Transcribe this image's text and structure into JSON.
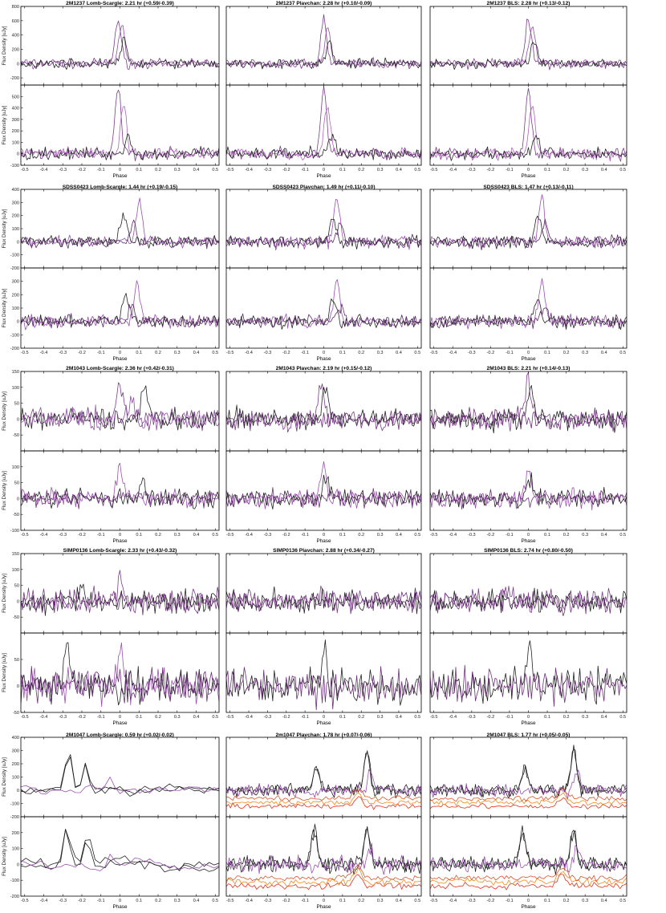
{
  "figure": {
    "x_ticks": [
      "-0.5",
      "-0.4",
      "-0.3",
      "-0.2",
      "-0.1",
      "0",
      "0.1",
      "0.2",
      "0.3",
      "0.4",
      "0.5"
    ],
    "x_label": "Phase",
    "y_label": "Flux Density [uJy]"
  },
  "chart_data": [
    {
      "type": "line",
      "row": 0,
      "col": 0,
      "title": "2M1237 Lomb-Scargle:  2.21 hr  (+0.59/-0.39)",
      "xlim": [
        -0.52,
        0.52
      ],
      "top": {
        "ylim": [
          -300,
          800
        ],
        "yticks": [
          -200,
          0,
          200,
          400,
          600,
          800
        ],
        "peaks": [
          {
            "x": -0.01,
            "amp": 620,
            "color": "#7a3d8a"
          },
          {
            "x": 0.01,
            "amp": 560,
            "color": "#8e4fa0"
          },
          {
            "x": 0.02,
            "amp": 320,
            "color": "#222222"
          }
        ],
        "noise": 55
      },
      "bottom": {
        "ylim": [
          -100,
          600
        ],
        "yticks": [
          -100,
          0,
          100,
          200,
          300,
          400,
          500
        ],
        "peaks": [
          {
            "x": -0.01,
            "amp": 560,
            "color": "#7a3d8a"
          },
          {
            "x": 0.02,
            "amp": 420,
            "color": "#b060c0"
          },
          {
            "x": 0.04,
            "amp": 160,
            "color": "#222222"
          }
        ],
        "noise": 45
      }
    },
    {
      "type": "line",
      "row": 0,
      "col": 1,
      "title": "2M1237 Plavchan:  2.28 hr  (+0.10/-0.09)",
      "xlim": [
        -0.52,
        0.52
      ],
      "top": {
        "ylim": [
          -300,
          800
        ],
        "yticks": [],
        "peaks": [
          {
            "x": 0.0,
            "amp": 640,
            "color": "#7a3d8a"
          },
          {
            "x": 0.02,
            "amp": 520,
            "color": "#8e4fa0"
          },
          {
            "x": 0.03,
            "amp": 300,
            "color": "#222222"
          }
        ],
        "noise": 55
      },
      "bottom": {
        "ylim": [
          -100,
          600
        ],
        "yticks": [],
        "peaks": [
          {
            "x": 0.0,
            "amp": 570,
            "color": "#7a3d8a"
          },
          {
            "x": 0.02,
            "amp": 440,
            "color": "#b060c0"
          },
          {
            "x": 0.04,
            "amp": 170,
            "color": "#222222"
          }
        ],
        "noise": 45
      }
    },
    {
      "type": "line",
      "row": 0,
      "col": 2,
      "title": "2M1237  BLS:   2.28 hr  (+0.13/-0.12)",
      "xlim": [
        -0.52,
        0.52
      ],
      "top": {
        "ylim": [
          -300,
          800
        ],
        "yticks": [],
        "peaks": [
          {
            "x": 0.0,
            "amp": 630,
            "color": "#7a3d8a"
          },
          {
            "x": 0.02,
            "amp": 530,
            "color": "#8e4fa0"
          },
          {
            "x": 0.03,
            "amp": 310,
            "color": "#222222"
          }
        ],
        "noise": 55
      },
      "bottom": {
        "ylim": [
          -100,
          600
        ],
        "yticks": [],
        "peaks": [
          {
            "x": 0.0,
            "amp": 560,
            "color": "#7a3d8a"
          },
          {
            "x": 0.02,
            "amp": 430,
            "color": "#b060c0"
          },
          {
            "x": 0.04,
            "amp": 160,
            "color": "#222222"
          }
        ],
        "noise": 45
      }
    },
    {
      "type": "line",
      "row": 1,
      "col": 0,
      "title": "SDSS0423 Lomb-Scargle:   1.44 hr  (+0.19/-0.15)",
      "xlim": [
        -0.52,
        0.52
      ],
      "top": {
        "ylim": [
          -200,
          400
        ],
        "yticks": [
          -200,
          -100,
          0,
          100,
          200,
          300,
          400
        ],
        "peaks": [
          {
            "x": 0.1,
            "amp": 330,
            "color": "#9a4fb0"
          },
          {
            "x": 0.02,
            "amp": 230,
            "color": "#222222"
          },
          {
            "x": 0.07,
            "amp": 130,
            "color": "#5a2a66"
          }
        ],
        "noise": 40
      },
      "bottom": {
        "ylim": [
          -200,
          400
        ],
        "yticks": [
          -200,
          -100,
          0,
          100,
          200,
          300
        ],
        "peaks": [
          {
            "x": 0.09,
            "amp": 300,
            "color": "#9a4fb0"
          },
          {
            "x": 0.03,
            "amp": 220,
            "color": "#222222"
          },
          {
            "x": 0.06,
            "amp": 120,
            "color": "#5a2a66"
          }
        ],
        "noise": 40
      }
    },
    {
      "type": "line",
      "row": 1,
      "col": 1,
      "title": "SDSS0423 Plavchan:   1.49 hr  (+0.11/-0.10)",
      "xlim": [
        -0.52,
        0.52
      ],
      "top": {
        "ylim": [
          -200,
          400
        ],
        "yticks": [],
        "peaks": [
          {
            "x": 0.07,
            "amp": 330,
            "color": "#9a4fb0"
          },
          {
            "x": 0.05,
            "amp": 190,
            "color": "#222222"
          },
          {
            "x": 0.09,
            "amp": 140,
            "color": "#5a2a66"
          }
        ],
        "noise": 40
      },
      "bottom": {
        "ylim": [
          -200,
          400
        ],
        "yticks": [],
        "peaks": [
          {
            "x": 0.07,
            "amp": 300,
            "color": "#9a4fb0"
          },
          {
            "x": 0.05,
            "amp": 180,
            "color": "#222222"
          },
          {
            "x": 0.09,
            "amp": 110,
            "color": "#5a2a66"
          }
        ],
        "noise": 40
      }
    },
    {
      "type": "line",
      "row": 1,
      "col": 2,
      "title": "SDSS0423  BLS:   1.47 hr  (+0.13/-0.11)",
      "xlim": [
        -0.52,
        0.52
      ],
      "top": {
        "ylim": [
          -200,
          400
        ],
        "yticks": [],
        "peaks": [
          {
            "x": 0.07,
            "amp": 330,
            "color": "#9a4fb0"
          },
          {
            "x": 0.05,
            "amp": 200,
            "color": "#222222"
          },
          {
            "x": 0.09,
            "amp": 140,
            "color": "#5a2a66"
          }
        ],
        "noise": 40
      },
      "bottom": {
        "ylim": [
          -200,
          400
        ],
        "yticks": [],
        "peaks": [
          {
            "x": 0.07,
            "amp": 310,
            "color": "#9a4fb0"
          },
          {
            "x": 0.05,
            "amp": 190,
            "color": "#222222"
          },
          {
            "x": 0.09,
            "amp": 110,
            "color": "#5a2a66"
          }
        ],
        "noise": 40
      }
    },
    {
      "type": "line",
      "row": 2,
      "col": 0,
      "title": "2M1043  Lomb-Scargle:   2.36 hr  (+0.42/-0.31)",
      "xlim": [
        -0.52,
        0.52
      ],
      "top": {
        "ylim": [
          -100,
          150
        ],
        "yticks": [
          -50,
          0,
          50,
          100,
          150
        ],
        "peaks": [
          {
            "x": 0.0,
            "amp": 110,
            "color": "#7a3d8a"
          },
          {
            "x": 0.13,
            "amp": 100,
            "color": "#222222"
          },
          {
            "x": 0.06,
            "amp": 60,
            "color": "#8e4fa0"
          }
        ],
        "noise": 28
      },
      "bottom": {
        "ylim": [
          -100,
          150
        ],
        "yticks": [
          -100,
          -50,
          0,
          50,
          100
        ],
        "peaks": [
          {
            "x": 0.0,
            "amp": 95,
            "color": "#9a4fb0"
          },
          {
            "x": 0.12,
            "amp": 55,
            "color": "#222222"
          }
        ],
        "noise": 24
      }
    },
    {
      "type": "line",
      "row": 2,
      "col": 1,
      "title": "2M1043 Plavchan:   2.19 hr  (+0.15/-0.12)",
      "xlim": [
        -0.52,
        0.52
      ],
      "top": {
        "ylim": [
          -100,
          150
        ],
        "yticks": [],
        "peaks": [
          {
            "x": -0.01,
            "amp": 115,
            "color": "#7a3d8a"
          },
          {
            "x": 0.01,
            "amp": 90,
            "color": "#222222"
          }
        ],
        "noise": 28
      },
      "bottom": {
        "ylim": [
          -100,
          150
        ],
        "yticks": [],
        "peaks": [
          {
            "x": 0.0,
            "amp": 100,
            "color": "#9a4fb0"
          },
          {
            "x": 0.01,
            "amp": 70,
            "color": "#222222"
          }
        ],
        "noise": 24
      }
    },
    {
      "type": "line",
      "row": 2,
      "col": 2,
      "title": "2M1043  BLS:   2.21 hr  (+0.14/-0.13)",
      "xlim": [
        -0.52,
        0.52
      ],
      "top": {
        "ylim": [
          -100,
          150
        ],
        "yticks": [],
        "peaks": [
          {
            "x": 0.0,
            "amp": 118,
            "color": "#7a3d8a"
          },
          {
            "x": 0.01,
            "amp": 85,
            "color": "#222222"
          }
        ],
        "noise": 28
      },
      "bottom": {
        "ylim": [
          -100,
          150
        ],
        "yticks": [],
        "peaks": [
          {
            "x": 0.0,
            "amp": 100,
            "color": "#9a4fb0"
          },
          {
            "x": 0.01,
            "amp": 65,
            "color": "#222222"
          }
        ],
        "noise": 24
      }
    },
    {
      "type": "line",
      "row": 3,
      "col": 0,
      "title": "SIMP0136 Lomb-Scargle:   2.33 hr  (+0.43/-0.32)",
      "xlim": [
        -0.52,
        0.52
      ],
      "top": {
        "ylim": [
          -100,
          150
        ],
        "yticks": [
          -50,
          0,
          50,
          100,
          150
        ],
        "peaks": [
          {
            "x": 0.0,
            "amp": 60,
            "color": "#7a3d8a"
          },
          {
            "x": -0.2,
            "amp": 40,
            "color": "#222222"
          }
        ],
        "noise": 30
      },
      "bottom": {
        "ylim": [
          -50,
          100
        ],
        "yticks": [
          -50,
          0,
          50
        ],
        "peaks": [
          {
            "x": 0.0,
            "amp": 80,
            "color": "#9a4fb0"
          },
          {
            "x": -0.28,
            "amp": 60,
            "color": "#222222"
          }
        ],
        "noise": 28
      }
    },
    {
      "type": "line",
      "row": 3,
      "col": 1,
      "title": "SIMP0136 Plavchan:   2.88 hr  (+0.34/-0.27)",
      "xlim": [
        -0.52,
        0.52
      ],
      "top": {
        "ylim": [
          -100,
          150
        ],
        "yticks": [],
        "peaks": [
          {
            "x": 0.0,
            "amp": 50,
            "color": "#7a3d8a"
          }
        ],
        "noise": 30
      },
      "bottom": {
        "ylim": [
          -50,
          100
        ],
        "yticks": [],
        "peaks": [
          {
            "x": 0.0,
            "amp": 70,
            "color": "#222222"
          }
        ],
        "noise": 28
      }
    },
    {
      "type": "line",
      "row": 3,
      "col": 2,
      "title": "SIMP0136  BLS:   2.74 hr  (+0.80/-0.50)",
      "xlim": [
        -0.52,
        0.52
      ],
      "top": {
        "ylim": [
          -100,
          150
        ],
        "yticks": [],
        "peaks": [
          {
            "x": -0.1,
            "amp": 50,
            "color": "#7a3d8a"
          }
        ],
        "noise": 30
      },
      "bottom": {
        "ylim": [
          -50,
          100
        ],
        "yticks": [],
        "peaks": [
          {
            "x": 0.0,
            "amp": 75,
            "color": "#222222"
          }
        ],
        "noise": 28
      }
    },
    {
      "type": "line",
      "row": 4,
      "col": 0,
      "title": "2M1047 Lomb-Scargle:   0.59 hr  (+0.02/-0.02)",
      "xlim": [
        -0.52,
        0.52
      ],
      "top": {
        "ylim": [
          -200,
          400
        ],
        "yticks": [
          -200,
          -100,
          0,
          100,
          200,
          300,
          400
        ],
        "peaks": [
          {
            "x": -0.27,
            "amp": 300,
            "color": "#222222"
          },
          {
            "x": -0.18,
            "amp": 220,
            "color": "#222222"
          },
          {
            "x": -0.05,
            "amp": 90,
            "color": "#9a4fb0"
          }
        ],
        "noise": 35,
        "smooth": true
      },
      "bottom": {
        "ylim": [
          -200,
          300
        ],
        "yticks": [
          -200,
          -100,
          0,
          100,
          200
        ],
        "peaks": [
          {
            "x": -0.28,
            "amp": 240,
            "color": "#222222"
          },
          {
            "x": -0.17,
            "amp": 220,
            "color": "#222222"
          },
          {
            "x": -0.05,
            "amp": 90,
            "color": "#9a4fb0"
          }
        ],
        "noise": 35,
        "smooth": true
      }
    },
    {
      "type": "line",
      "row": 4,
      "col": 1,
      "title": "2m1047 Plavchan:   1.78 hr  (+0.07/-0.06)",
      "xlim": [
        -0.52,
        0.52
      ],
      "top": {
        "ylim": [
          -200,
          400
        ],
        "yticks": [],
        "peaks": [
          {
            "x": 0.23,
            "amp": 300,
            "color": "#222222"
          },
          {
            "x": -0.04,
            "amp": 170,
            "color": "#222222"
          },
          {
            "x": 0.25,
            "amp": 140,
            "color": "#9a4fb0"
          }
        ],
        "noise": 40,
        "warm": true
      },
      "bottom": {
        "ylim": [
          -200,
          300
        ],
        "yticks": [],
        "peaks": [
          {
            "x": -0.05,
            "amp": 210,
            "color": "#222222"
          },
          {
            "x": 0.23,
            "amp": 200,
            "color": "#222222"
          },
          {
            "x": 0.25,
            "amp": 120,
            "color": "#9a4fb0"
          }
        ],
        "noise": 40,
        "warm": true
      }
    },
    {
      "type": "line",
      "row": 4,
      "col": 2,
      "title": "2M1047  BLS:   1.77 hr  (+0.05/-0.05)",
      "xlim": [
        -0.52,
        0.52
      ],
      "top": {
        "ylim": [
          -200,
          400
        ],
        "yticks": [],
        "peaks": [
          {
            "x": 0.24,
            "amp": 310,
            "color": "#222222"
          },
          {
            "x": -0.02,
            "amp": 170,
            "color": "#222222"
          },
          {
            "x": 0.26,
            "amp": 140,
            "color": "#9a4fb0"
          }
        ],
        "noise": 40,
        "warm": true
      },
      "bottom": {
        "ylim": [
          -200,
          300
        ],
        "yticks": [],
        "peaks": [
          {
            "x": -0.03,
            "amp": 200,
            "color": "#222222"
          },
          {
            "x": 0.24,
            "amp": 210,
            "color": "#222222"
          },
          {
            "x": 0.26,
            "amp": 120,
            "color": "#9a4fb0"
          }
        ],
        "noise": 40,
        "warm": true
      }
    }
  ]
}
